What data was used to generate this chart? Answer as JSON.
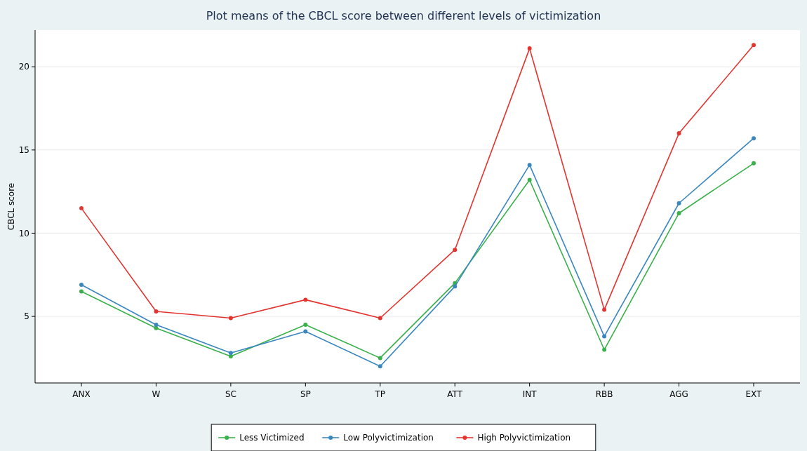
{
  "chart_data": {
    "type": "line",
    "title": "Plot means of the CBCL score between different levels of victimization",
    "ylabel": "CBCL score",
    "categories": [
      "ANX",
      "W",
      "SC",
      "SP",
      "TP",
      "ATT",
      "INT",
      "RBB",
      "AGG",
      "EXT"
    ],
    "series": [
      {
        "name": "Less Victimized",
        "color": "#3ab04a",
        "values": [
          6.5,
          4.3,
          2.6,
          4.5,
          2.5,
          7.0,
          13.2,
          3.0,
          11.2,
          14.2
        ]
      },
      {
        "name": "Low Polyvictimization",
        "color": "#3a87c0",
        "values": [
          6.9,
          4.5,
          2.8,
          4.1,
          2.0,
          6.8,
          14.1,
          3.8,
          11.8,
          15.7
        ]
      },
      {
        "name": "High Polyvictimization",
        "color": "#e3342f",
        "values": [
          11.5,
          5.3,
          4.9,
          6.0,
          4.9,
          9.0,
          21.1,
          5.4,
          16.0,
          21.3
        ]
      }
    ],
    "ylim": [
      1,
      22.2
    ],
    "yticks": [
      5,
      10,
      15,
      20
    ],
    "grid": "y",
    "legend": "bottom",
    "marker": "circle",
    "line_style": "solid"
  }
}
